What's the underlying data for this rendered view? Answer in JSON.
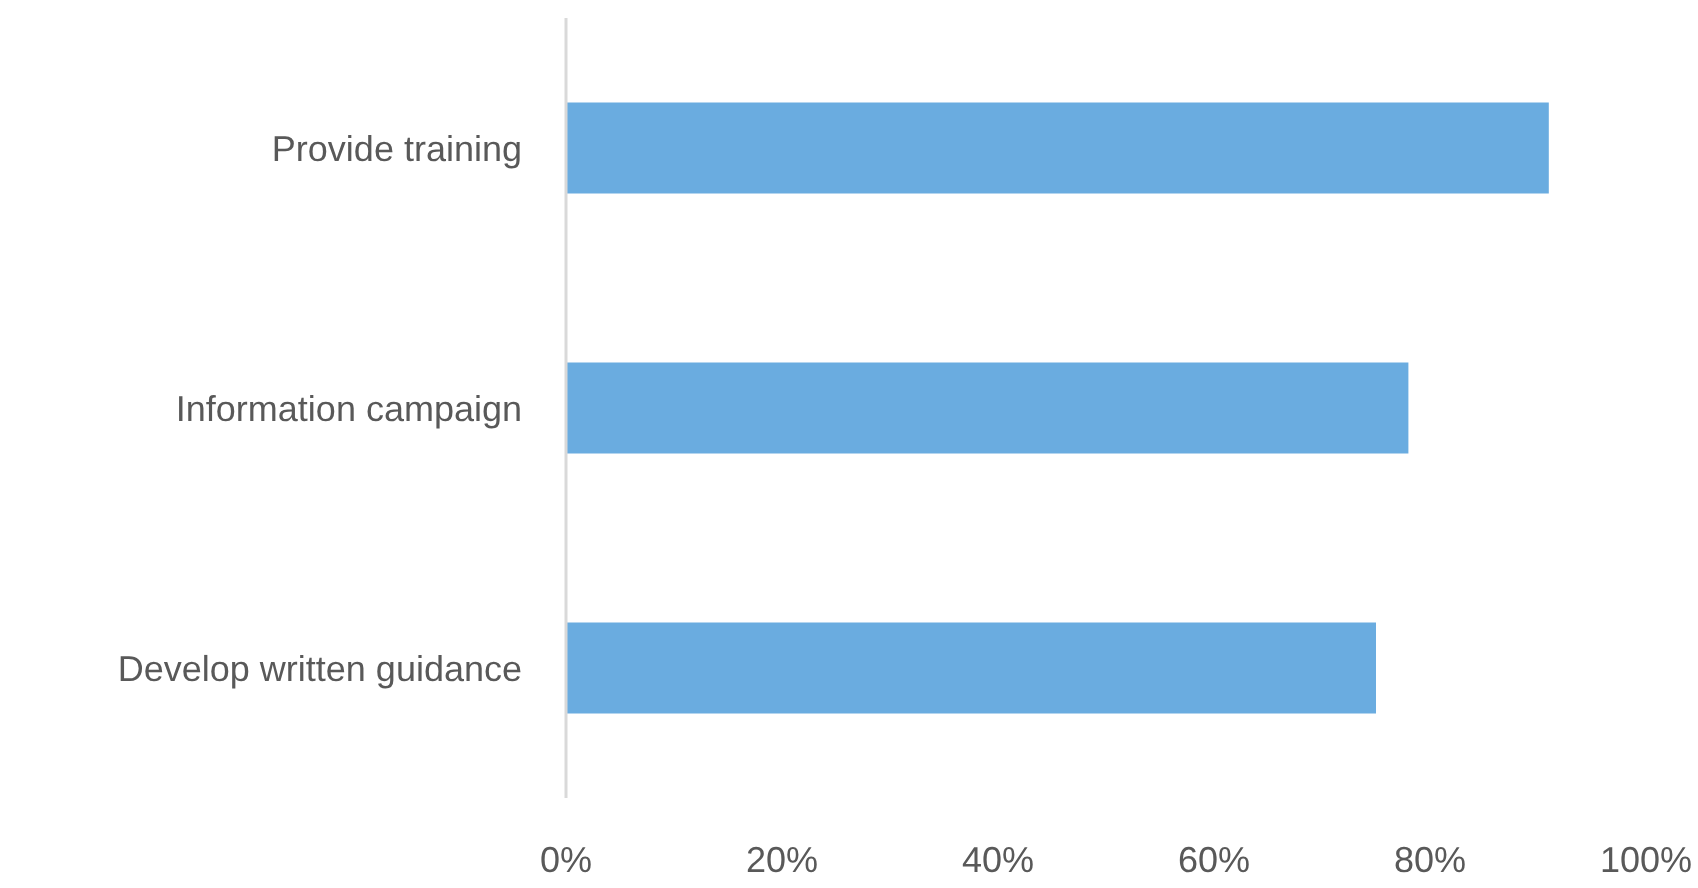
{
  "chart_data": {
    "type": "bar",
    "orientation": "horizontal",
    "categories": [
      "Provide training",
      "Information campaign",
      "Develop written guidance"
    ],
    "values": [
      91,
      78,
      75
    ],
    "color": "#6aace0",
    "xlim": [
      0,
      100
    ],
    "xticks": [
      {
        "value": 0,
        "label": "0%"
      },
      {
        "value": 20,
        "label": "20%"
      },
      {
        "value": 40,
        "label": "40%"
      },
      {
        "value": 60,
        "label": "60%"
      },
      {
        "value": 80,
        "label": "80%"
      },
      {
        "value": 100,
        "label": "100%"
      }
    ],
    "grid": false
  }
}
